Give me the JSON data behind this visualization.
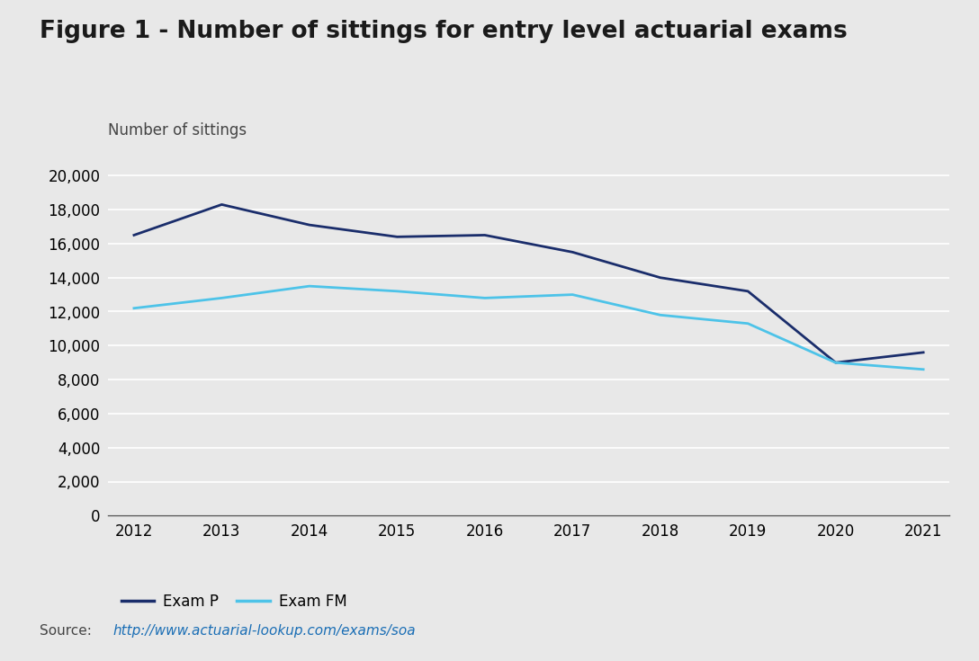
{
  "title": "Figure 1 - Number of sittings for entry level actuarial exams",
  "ylabel": "Number of sittings",
  "background_color": "#e8e8e8",
  "plot_background_color": "#e8e8e8",
  "years": [
    2012,
    2013,
    2014,
    2015,
    2016,
    2017,
    2018,
    2019,
    2020,
    2021
  ],
  "exam_p": [
    16500,
    18300,
    17100,
    16400,
    16500,
    15500,
    14000,
    13200,
    9000,
    9600
  ],
  "exam_fm": [
    12200,
    12800,
    13500,
    13200,
    12800,
    13000,
    11800,
    11300,
    9000,
    8600
  ],
  "exam_p_color": "#1a2d6b",
  "exam_fm_color": "#4dc3e8",
  "line_width": 2.0,
  "ylim": [
    0,
    21000
  ],
  "yticks": [
    0,
    2000,
    4000,
    6000,
    8000,
    10000,
    12000,
    14000,
    16000,
    18000,
    20000
  ],
  "legend_exam_p": "Exam P",
  "legend_exam_fm": "Exam FM",
  "source_text": "Source: ",
  "source_url": "http://www.actuarial-lookup.com/exams/soa",
  "source_url_color": "#1a6eb5",
  "title_fontsize": 19,
  "label_fontsize": 12,
  "tick_fontsize": 12,
  "legend_fontsize": 12,
  "source_fontsize": 11,
  "grid_color": "#c8c8c8"
}
